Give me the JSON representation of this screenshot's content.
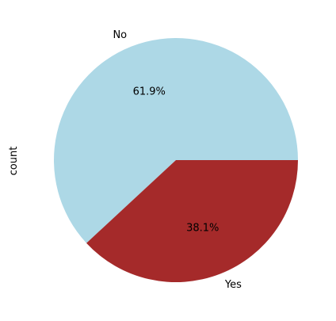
{
  "chart_data": {
    "type": "pie",
    "ylabel": "count",
    "slices": [
      {
        "label": "No",
        "percent": 61.9,
        "pct_label": "61.9%",
        "color": "#add8e6"
      },
      {
        "label": "Yes",
        "percent": 38.1,
        "pct_label": "38.1%",
        "color": "#a52a2a"
      }
    ],
    "start_angle_deg": 0,
    "direction": "counterclockwise"
  }
}
